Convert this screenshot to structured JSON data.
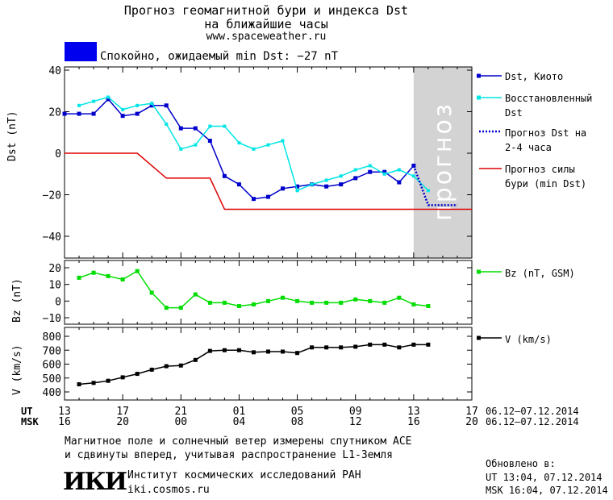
{
  "header": {
    "title_line1": "Прогноз геомагнитной бури и индекса Dst",
    "title_line2": "на ближайшие часы",
    "site": "www.spaceweather.ru",
    "status_text": "Спокойно, ожидаемый min Dst: −27 nT",
    "status_color": "#0000ee"
  },
  "chart_data": [
    {
      "type": "line",
      "ylabel": "Dst (nT)",
      "ylim": [
        -50,
        40
      ],
      "y_ticks": [
        40,
        20,
        0,
        -20,
        -40
      ],
      "x_unit": "hours from 13 UT 06.12",
      "xlim": [
        0,
        28
      ],
      "forecast_band": {
        "label": "прогноз",
        "x_start": 24.0,
        "x_end": 28,
        "color": "#d3d3d3"
      },
      "series": [
        {
          "name": "Dst, Киото",
          "color": "#0000cc",
          "x": [
            0,
            1,
            2,
            3,
            4,
            5,
            6,
            7,
            8,
            9,
            10,
            11,
            12,
            13,
            14,
            15,
            16,
            17,
            18,
            19,
            20,
            21,
            22,
            23,
            24
          ],
          "y": [
            19,
            19,
            19,
            26,
            18,
            19,
            23,
            23,
            12,
            12,
            6,
            -11,
            -15,
            -22,
            -21,
            -17,
            -16,
            -15,
            -16,
            -15,
            -12,
            -9,
            -9,
            -14,
            -6
          ]
        },
        {
          "name": "Восстановленный Dst",
          "color": "#00e5e5",
          "x": [
            1,
            2,
            3,
            4,
            5,
            6,
            7,
            8,
            9,
            10,
            11,
            12,
            13,
            14,
            15,
            16,
            17,
            18,
            19,
            20,
            21,
            22,
            23,
            24,
            25
          ],
          "y": [
            23,
            25,
            27,
            21,
            23,
            24,
            14,
            2,
            4,
            13,
            13,
            5,
            2,
            4,
            6,
            -18,
            -15,
            -13,
            -11,
            -8,
            -6,
            -10,
            -8,
            -11,
            -18
          ]
        },
        {
          "name": "Прогноз Dst на 2-4 часа",
          "color": "#0000cc",
          "dash": true,
          "x": [
            24,
            25,
            26,
            27
          ],
          "y": [
            -6,
            -25,
            -25,
            -25
          ]
        },
        {
          "name": "Прогноз силы бури (min Dst)",
          "color": "#dd0000",
          "x": [
            0,
            5,
            6,
            7,
            10,
            11,
            28
          ],
          "y": [
            0,
            0,
            -6,
            -12,
            -12,
            -27,
            -27
          ]
        }
      ]
    },
    {
      "type": "line",
      "ylabel": "Bz (nT)",
      "ylim": [
        -15,
        22
      ],
      "y_ticks": [
        20,
        10,
        0,
        -10
      ],
      "series": [
        {
          "name": "Bz (nT, GSM)",
          "color": "#00dd00",
          "x": [
            1,
            2,
            3,
            4,
            5,
            6,
            7,
            8,
            9,
            10,
            11,
            12,
            13,
            14,
            15,
            16,
            17,
            18,
            19,
            20,
            21,
            22,
            23,
            24,
            25
          ],
          "y": [
            14,
            17,
            15,
            13,
            18,
            5,
            -4,
            -4,
            4,
            -1,
            -1,
            -3,
            -2,
            0,
            2,
            0,
            -1,
            -1,
            -1,
            1,
            0,
            -1,
            2,
            -2,
            -3
          ]
        }
      ]
    },
    {
      "type": "line",
      "ylabel": "V (km/s)",
      "ylim": [
        350,
        850
      ],
      "y_ticks": [
        800,
        700,
        600,
        500,
        400
      ],
      "series": [
        {
          "name": "V (km/s)",
          "color": "#000000",
          "x": [
            1,
            2,
            3,
            4,
            5,
            6,
            7,
            8,
            9,
            10,
            11,
            12,
            13,
            14,
            15,
            16,
            17,
            18,
            19,
            20,
            21,
            22,
            23,
            24,
            25
          ],
          "y": [
            455,
            465,
            480,
            505,
            530,
            560,
            585,
            590,
            630,
            695,
            700,
            700,
            685,
            690,
            690,
            680,
            720,
            720,
            720,
            725,
            740,
            740,
            720,
            740,
            740
          ]
        }
      ]
    }
  ],
  "axis": {
    "ut_label": "UT",
    "msk_label": "MSK",
    "ut_ticks": [
      "13",
      "17",
      "21",
      "01",
      "05",
      "09",
      "13",
      "17"
    ],
    "msk_ticks": [
      "16",
      "20",
      "00",
      "04",
      "08",
      "12",
      "16",
      "20"
    ],
    "ut_range": "06.12–07.12.2014",
    "msk_range": "06.12–07.12.2014"
  },
  "footer": {
    "note_line1": "Магнитное поле и солнечный ветер измерены спутником ACE",
    "note_line2": "и сдвинуты вперед, учитывая распространение L1-Земля",
    "logo_text": "ИКИ",
    "institute": "Институт космических исследований РАН",
    "institute_site": "iki.cosmos.ru",
    "updated_label": "Обновлено в:",
    "updated_ut": "UT  13:04, 07.12.2014",
    "updated_msk": "MSK 16:04, 07.12.2014"
  }
}
